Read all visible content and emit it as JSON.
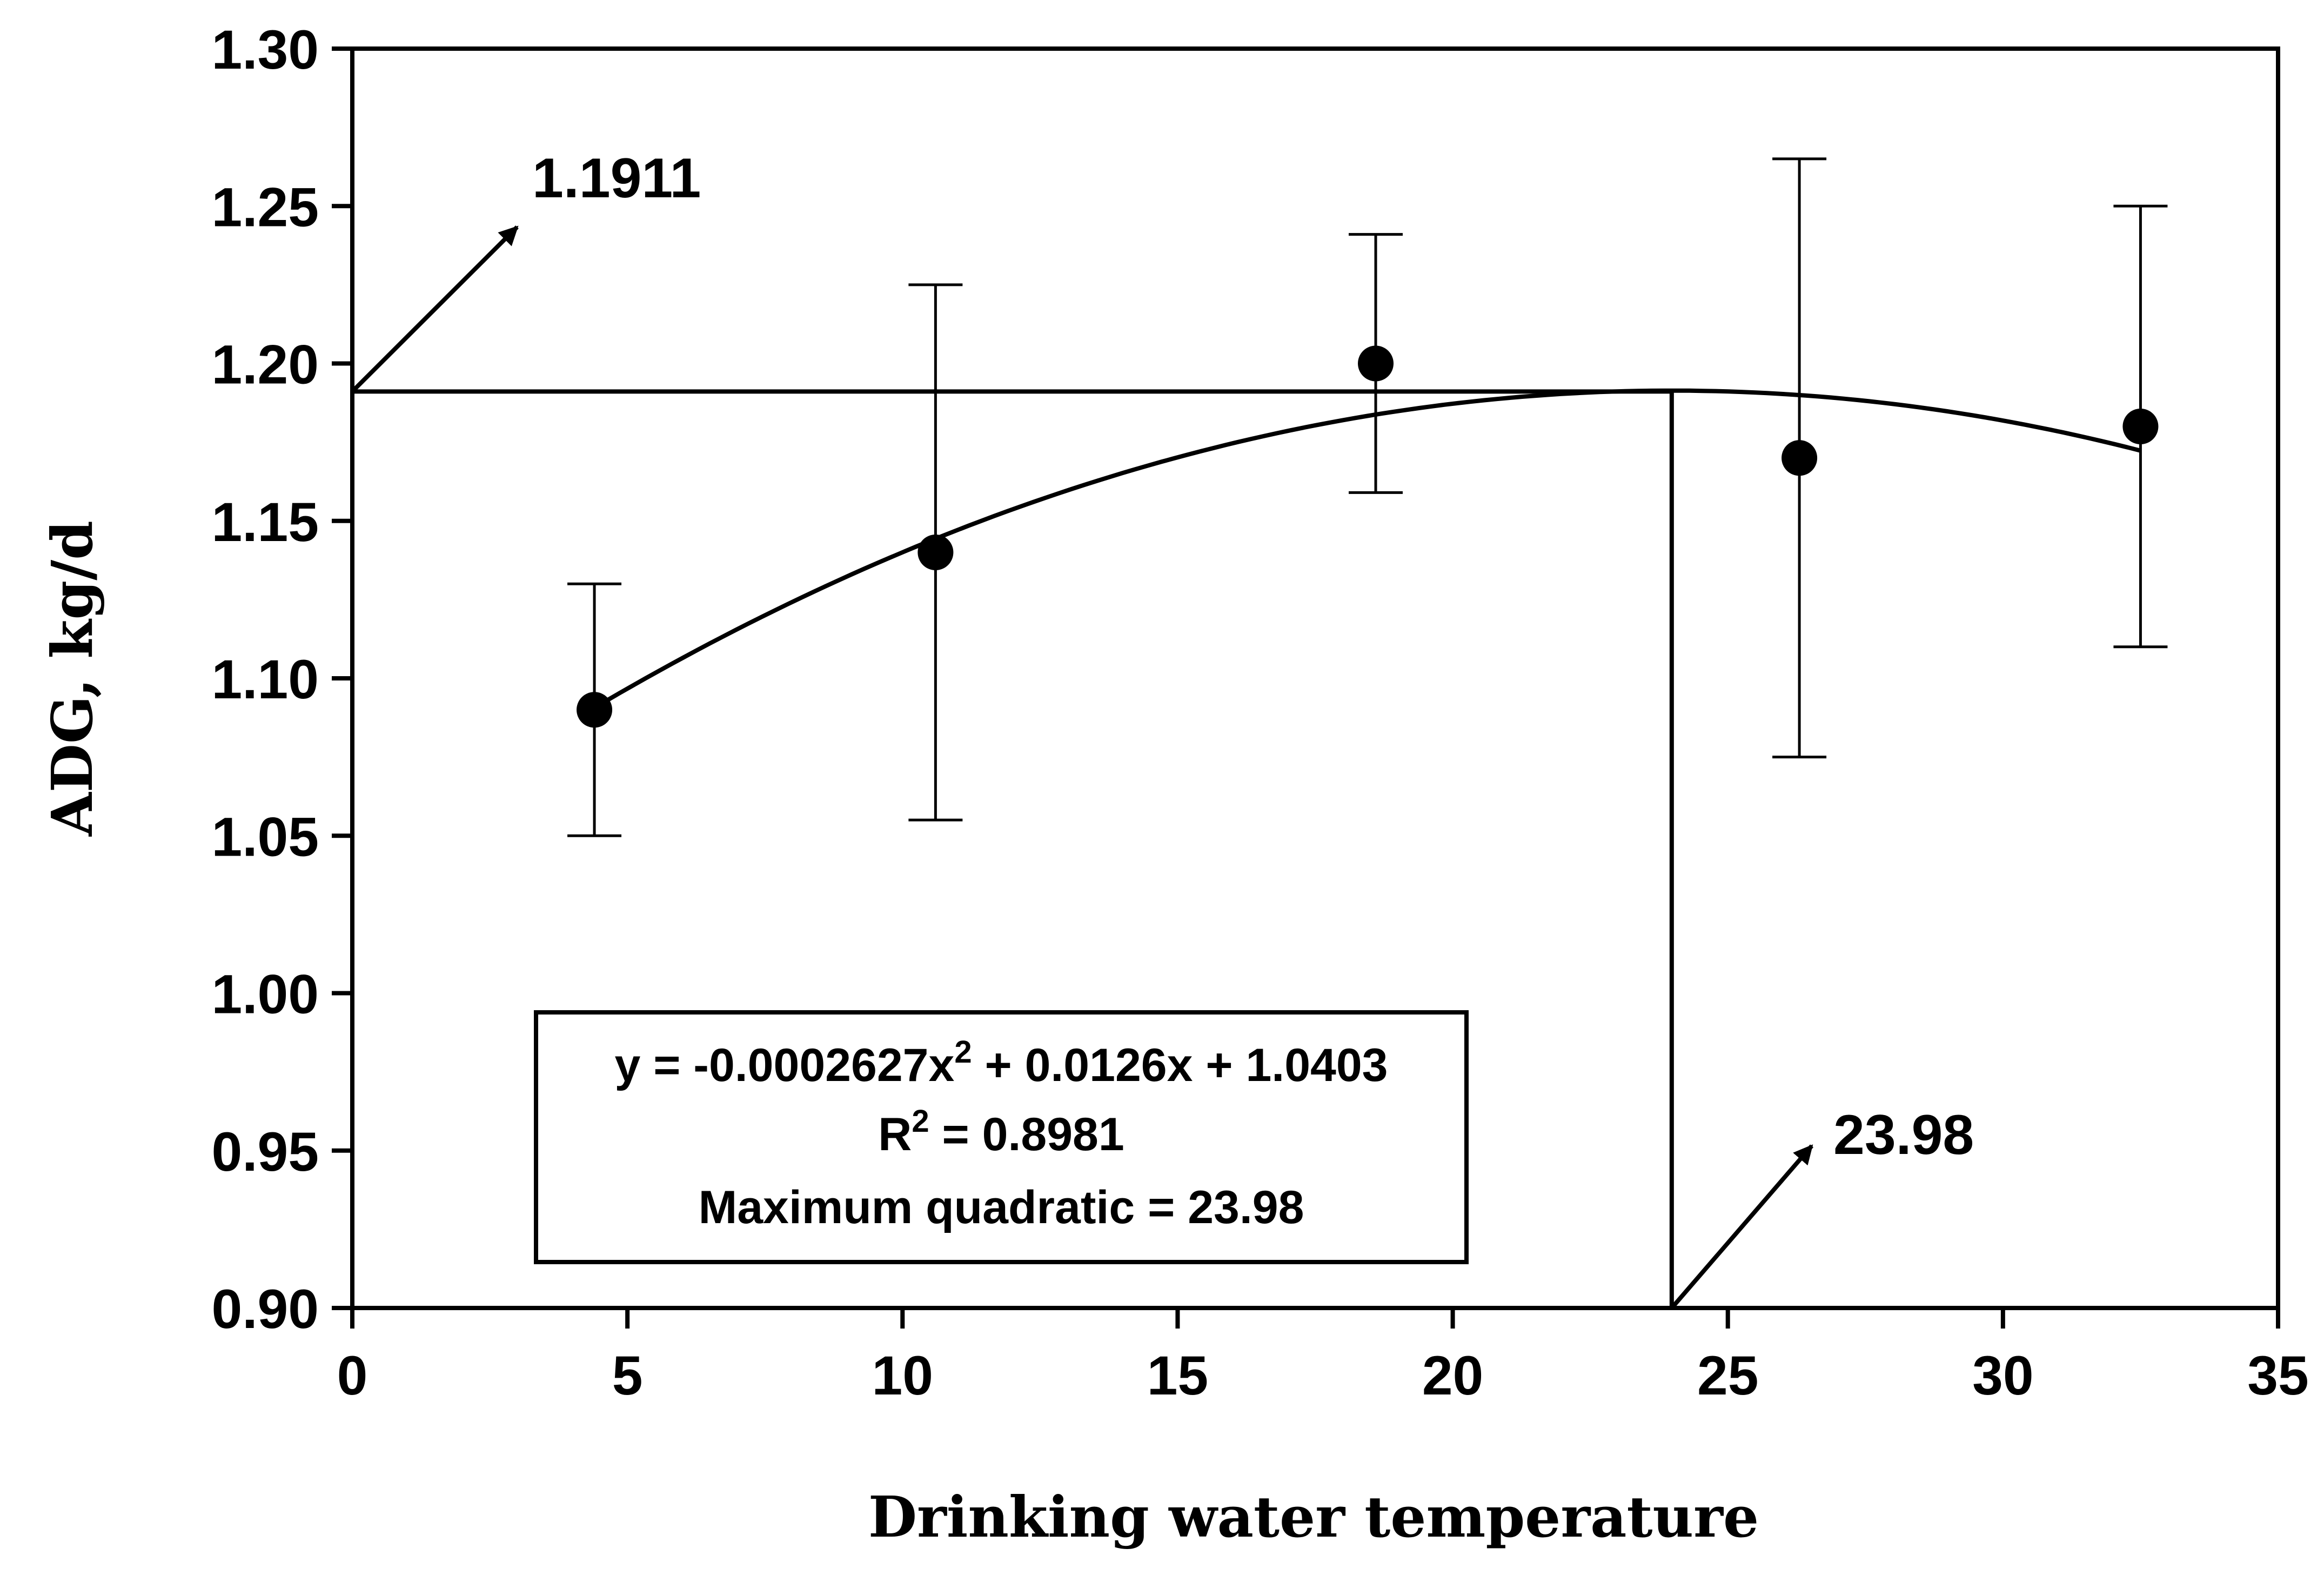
{
  "chart_data": {
    "type": "scatter",
    "xlabel": "Drinking water temperature",
    "ylabel": "ADG, kg/d",
    "xlim": [
      0,
      35
    ],
    "ylim": [
      0.9,
      1.3
    ],
    "xticks": [
      0,
      5,
      10,
      15,
      20,
      25,
      30,
      35
    ],
    "xtick_labels": [
      "0",
      "5",
      "10",
      "15",
      "20",
      "25",
      "30",
      "35"
    ],
    "yticks": [
      0.9,
      0.95,
      1.0,
      1.05,
      1.1,
      1.15,
      1.2,
      1.25,
      1.3
    ],
    "ytick_labels": [
      "0.90",
      "0.95",
      "1.00",
      "1.05",
      "1.10",
      "1.15",
      "1.20",
      "1.25",
      "1.30"
    ],
    "points": [
      {
        "x": 4.4,
        "y": 1.09,
        "err_low": 1.05,
        "err_high": 1.13
      },
      {
        "x": 10.6,
        "y": 1.14,
        "err_low": 1.055,
        "err_high": 1.225
      },
      {
        "x": 18.6,
        "y": 1.2,
        "err_low": 1.159,
        "err_high": 1.241
      },
      {
        "x": 26.3,
        "y": 1.17,
        "err_low": 1.075,
        "err_high": 1.265
      },
      {
        "x": 32.5,
        "y": 1.18,
        "err_low": 1.11,
        "err_high": 1.25
      }
    ],
    "fit": {
      "a": -0.0002627,
      "b": 0.0126,
      "c": 1.0403,
      "x_start": 4.4,
      "x_end": 32.5
    },
    "max_y": 1.1911,
    "max_x": 23.98,
    "max_y_label": "1.1911",
    "max_x_label": "23.98",
    "equation_box": {
      "eq_prefix": "y = -0.0002627x",
      "eq_sup": "2",
      "eq_suffix": " + 0.0126x + 1.0403",
      "r2_prefix": "R",
      "r2_sup": "2",
      "r2_suffix": " = 0.8981",
      "maximum": "Maximum quadratic = 23.98"
    }
  }
}
